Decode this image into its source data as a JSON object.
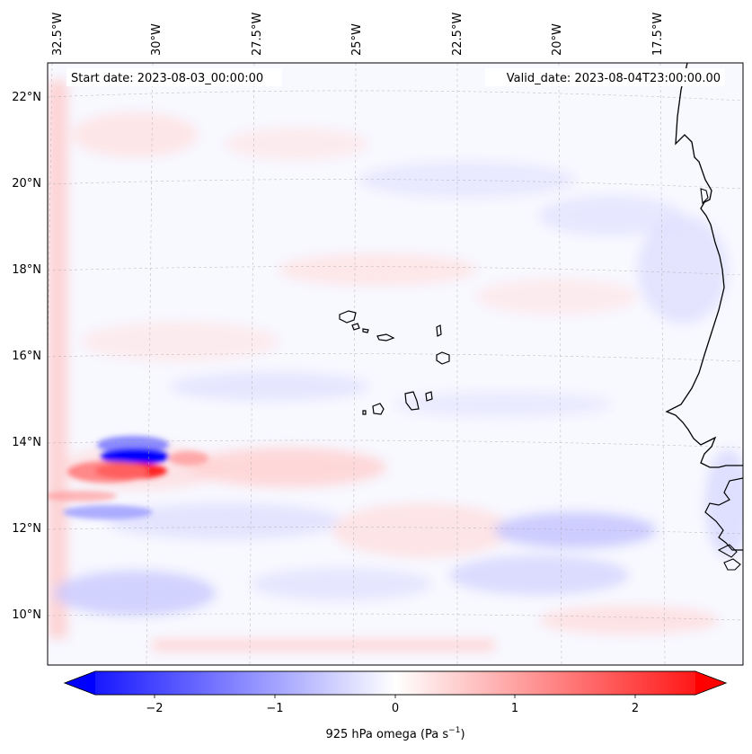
{
  "map": {
    "start_date": "Start date: 2023-08-03_00:00:00",
    "valid_date": "Valid_date: 2023-08-04T23:00:00.00"
  },
  "lon_labels": [
    "32.5°W",
    "30°W",
    "27.5°W",
    "25°W",
    "22.5°W",
    "20°W",
    "17.5°W"
  ],
  "lat_labels": [
    "22°N",
    "20°N",
    "18°N",
    "16°N",
    "14°N",
    "12°N",
    "10°N"
  ],
  "colorbar": {
    "ticks": [
      "−2",
      "−1",
      "0",
      "1",
      "2"
    ],
    "label_main": "925 hPa omega (Pa s",
    "label_sup": "−1",
    "label_close": ")",
    "color_neg": "#0000ff",
    "color_zero": "#ffffff",
    "color_pos": "#ff0000"
  }
}
